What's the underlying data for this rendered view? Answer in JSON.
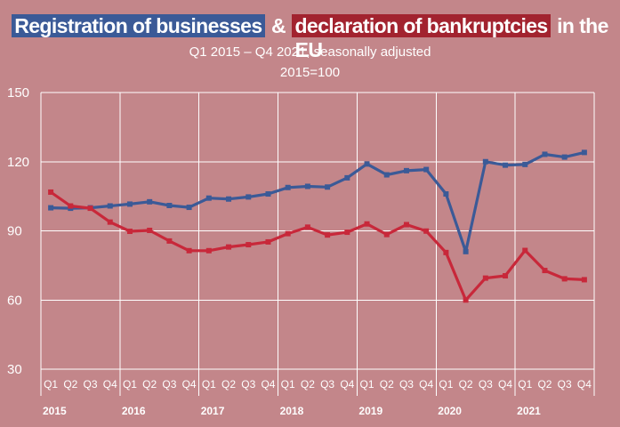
{
  "header": {
    "title_part1": "Registration of businesses",
    "title_amp": "&",
    "title_part2": "declaration of bankruptcies",
    "title_part3": "in the EU",
    "subtitle": "Q1 2015 – Q4 2021, seasonally adjusted",
    "base_note": "2015=100"
  },
  "chart_data": {
    "type": "line",
    "ylim": [
      30,
      150
    ],
    "yticks": [
      30,
      60,
      90,
      120,
      150
    ],
    "grid": "horizontal",
    "x_quarters": [
      "Q1",
      "Q2",
      "Q3",
      "Q4",
      "Q1",
      "Q2",
      "Q3",
      "Q4",
      "Q1",
      "Q2",
      "Q3",
      "Q4",
      "Q1",
      "Q2",
      "Q3",
      "Q4",
      "Q1",
      "Q2",
      "Q3",
      "Q4",
      "Q1",
      "Q2",
      "Q3",
      "Q4",
      "Q1",
      "Q2",
      "Q3",
      "Q4"
    ],
    "years": [
      "2015",
      "2016",
      "2017",
      "2018",
      "2019",
      "2020",
      "2021"
    ],
    "series": [
      {
        "color": "#3b5a97",
        "values": [
          100,
          99.8,
          100,
          100.8,
          101.6,
          102.6,
          101,
          100.2,
          104.2,
          103.8,
          104.7,
          106,
          108.8,
          109.3,
          109,
          113,
          119,
          114.3,
          116.1,
          116.6,
          106,
          81,
          120,
          118.5,
          118.8,
          123.2,
          122,
          124
        ]
      },
      {
        "color": "#c8283a",
        "values": [
          106.8,
          100.8,
          99.8,
          93.8,
          89.8,
          90.2,
          85.6,
          81.4,
          81.4,
          83,
          84,
          85.2,
          88.8,
          91.6,
          88.2,
          89.4,
          93,
          88.4,
          92.7,
          89.9,
          80.6,
          60,
          69.5,
          70.5,
          81.5,
          72.8,
          69.2,
          68.8
        ]
      }
    ]
  }
}
